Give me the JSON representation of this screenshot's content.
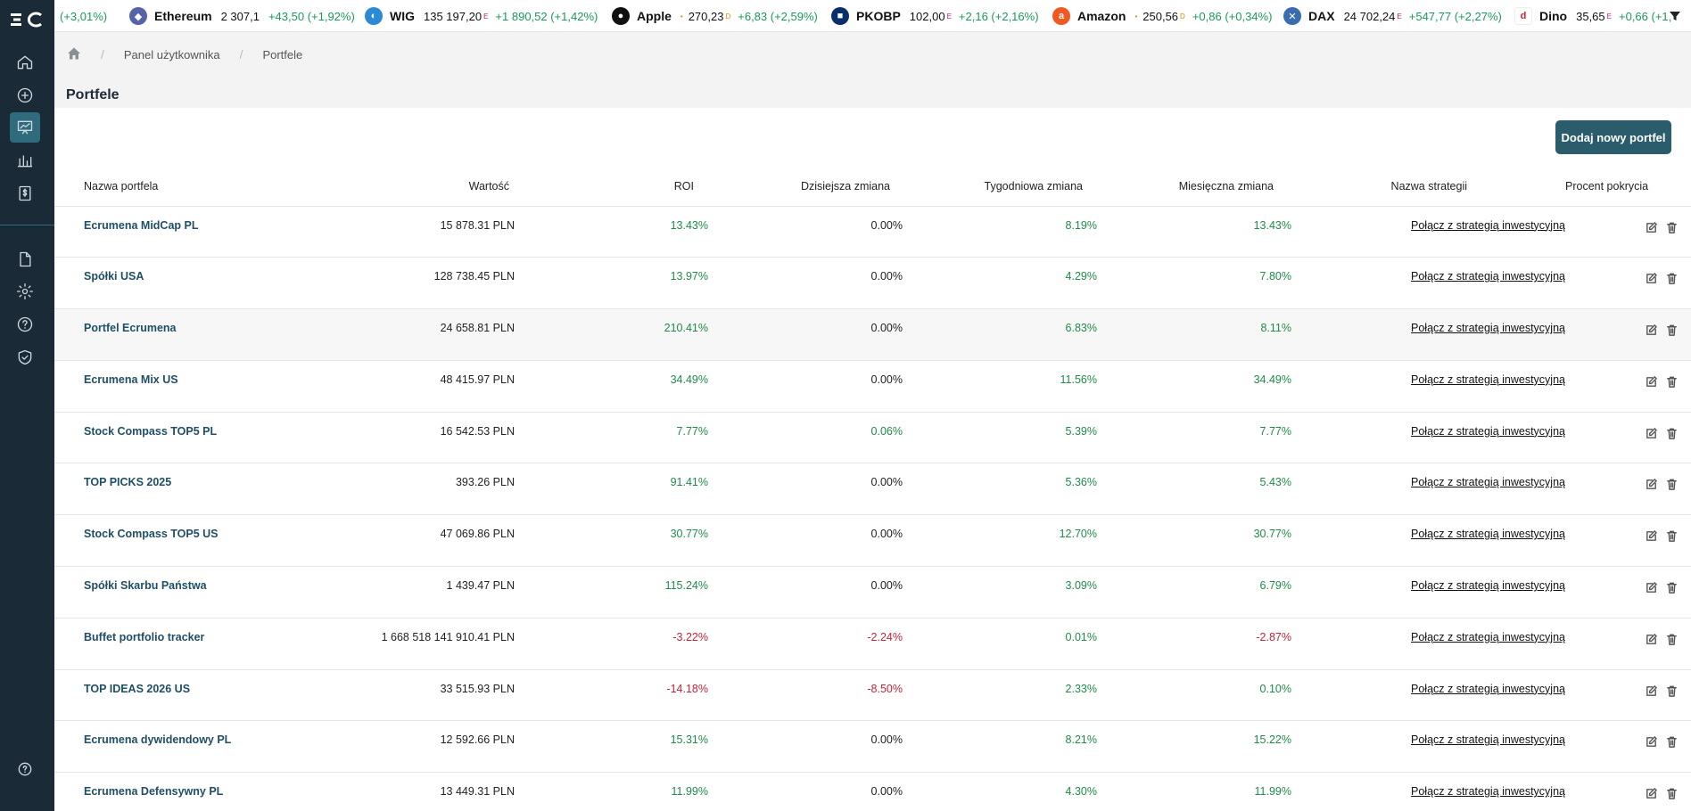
{
  "ticker": [
    {
      "name": "",
      "price": "",
      "flag": "",
      "change": "(+3,01%)",
      "logo": "",
      "color": ""
    },
    {
      "name": "Ethereum",
      "price": "2 307,1",
      "flag": "",
      "change": "+43,50 (+1,92%)",
      "logo": "ethereum-icon",
      "color": "#5563a8"
    },
    {
      "name": "WIG",
      "price": "135 197,20",
      "flag": "E",
      "change": "+1 890,52 (+1,42%)",
      "logo": "wig-icon",
      "color": "#2a8ad6"
    },
    {
      "name": "Apple",
      "price": "270,23",
      "flag": "D",
      "change": "+6,83 (+2,59%)",
      "logo": "apple-icon",
      "color": "#111111"
    },
    {
      "name": "PKOBP",
      "price": "102,00",
      "flag": "E",
      "change": "+2,16 (+2,16%)",
      "logo": "pkobp-icon",
      "color": "#0b2f6b"
    },
    {
      "name": "Amazon",
      "price": "250,56",
      "flag": "D",
      "change": "+0,86 (+0,34%)",
      "logo": "amazon-icon",
      "color": "#f05a22"
    },
    {
      "name": "DAX",
      "price": "24 702,24",
      "flag": "E",
      "change": "+547,77 (+2,27%)",
      "logo": "dax-icon",
      "color": "#3a6db0"
    },
    {
      "name": "Dino",
      "price": "35,65",
      "flag": "E",
      "change": "+0,66 (+1,",
      "logo": "dino-icon",
      "color": "#d81f2a"
    }
  ],
  "breadcrumb": {
    "items": [
      "Panel użytkownika",
      "Portfele"
    ]
  },
  "page": {
    "title": "Portfele",
    "add_button": "Dodaj nowy portfel"
  },
  "table": {
    "headers": {
      "name": "Nazwa portfela",
      "value": "Wartość",
      "roi": "ROI",
      "day": "Dzisiejsza zmiana",
      "week": "Tygodniowa zmiana",
      "month": "Miesięczna zmiana",
      "strategy": "Nazwa strategii",
      "coverage": "Procent pokrycia"
    },
    "rows": [
      {
        "name": "Ecrumena MidCap PL",
        "value": "15 878.31 PLN",
        "roi": "13.43%",
        "roi_s": "pos",
        "day": "0.00%",
        "day_s": "neu",
        "week": "8.19%",
        "week_s": "pos",
        "month": "13.43%",
        "month_s": "pos",
        "strategy": "Połącz z strategią inwestycyjną"
      },
      {
        "name": "Spółki USA",
        "value": "128 738.45 PLN",
        "roi": "13.97%",
        "roi_s": "pos",
        "day": "0.00%",
        "day_s": "neu",
        "week": "4.29%",
        "week_s": "pos",
        "month": "7.80%",
        "month_s": "pos",
        "strategy": "Połącz z strategią inwestycyjną"
      },
      {
        "name": "Portfel Ecrumena",
        "value": "24 658.81 PLN",
        "roi": "210.41%",
        "roi_s": "pos",
        "day": "0.00%",
        "day_s": "neu",
        "week": "6.83%",
        "week_s": "pos",
        "month": "8.11%",
        "month_s": "pos",
        "strategy": "Połącz z strategią inwestycyjną"
      },
      {
        "name": "Ecrumena Mix US",
        "value": "48 415.97 PLN",
        "roi": "34.49%",
        "roi_s": "pos",
        "day": "0.00%",
        "day_s": "neu",
        "week": "11.56%",
        "week_s": "pos",
        "month": "34.49%",
        "month_s": "pos",
        "strategy": "Połącz z strategią inwestycyjną"
      },
      {
        "name": "Stock Compass TOP5 PL",
        "value": "16 542.53 PLN",
        "roi": "7.77%",
        "roi_s": "pos",
        "day": "0.06%",
        "day_s": "pos",
        "week": "5.39%",
        "week_s": "pos",
        "month": "7.77%",
        "month_s": "pos",
        "strategy": "Połącz z strategią inwestycyjną"
      },
      {
        "name": "TOP PICKS 2025",
        "value": "393.26 PLN",
        "roi": "91.41%",
        "roi_s": "pos",
        "day": "0.00%",
        "day_s": "neu",
        "week": "5.36%",
        "week_s": "pos",
        "month": "5.43%",
        "month_s": "pos",
        "strategy": "Połącz z strategią inwestycyjną"
      },
      {
        "name": "Stock Compass TOP5 US",
        "value": "47 069.86 PLN",
        "roi": "30.77%",
        "roi_s": "pos",
        "day": "0.00%",
        "day_s": "neu",
        "week": "12.70%",
        "week_s": "pos",
        "month": "30.77%",
        "month_s": "pos",
        "strategy": "Połącz z strategią inwestycyjną"
      },
      {
        "name": "Spółki Skarbu Państwa",
        "value": "1 439.47 PLN",
        "roi": "115.24%",
        "roi_s": "pos",
        "day": "0.00%",
        "day_s": "neu",
        "week": "3.09%",
        "week_s": "pos",
        "month": "6.79%",
        "month_s": "pos",
        "strategy": "Połącz z strategią inwestycyjną"
      },
      {
        "name": "Buffet portfolio tracker",
        "value": "1 668 518 141 910.41 PLN",
        "roi": "-3.22%",
        "roi_s": "neg",
        "day": "-2.24%",
        "day_s": "neg",
        "week": "0.01%",
        "week_s": "pos",
        "month": "-2.87%",
        "month_s": "neg",
        "strategy": "Połącz z strategią inwestycyjną"
      },
      {
        "name": "TOP IDEAS 2026 US",
        "value": "33 515.93 PLN",
        "roi": "-14.18%",
        "roi_s": "neg",
        "day": "-8.50%",
        "day_s": "neg",
        "week": "2.33%",
        "week_s": "pos",
        "month": "0.10%",
        "month_s": "pos",
        "strategy": "Połącz z strategią inwestycyjną"
      },
      {
        "name": "Ecrumena dywidendowy PL",
        "value": "12 592.66 PLN",
        "roi": "15.31%",
        "roi_s": "pos",
        "day": "0.00%",
        "day_s": "neu",
        "week": "8.21%",
        "week_s": "pos",
        "month": "15.22%",
        "month_s": "pos",
        "strategy": "Połącz z strategią inwestycyjną"
      },
      {
        "name": "Ecrumena Defensywny PL",
        "value": "13 449.31 PLN",
        "roi": "11.99%",
        "roi_s": "pos",
        "day": "0.00%",
        "day_s": "neu",
        "week": "4.30%",
        "week_s": "pos",
        "month": "11.99%",
        "month_s": "pos",
        "strategy": "Połącz z strategią inwestycyjną"
      }
    ]
  },
  "colors": {
    "sidebar": "#1b2a37",
    "accent": "#2b5c6b",
    "positive": "#1f8a4a",
    "negative": "#c0243b"
  }
}
